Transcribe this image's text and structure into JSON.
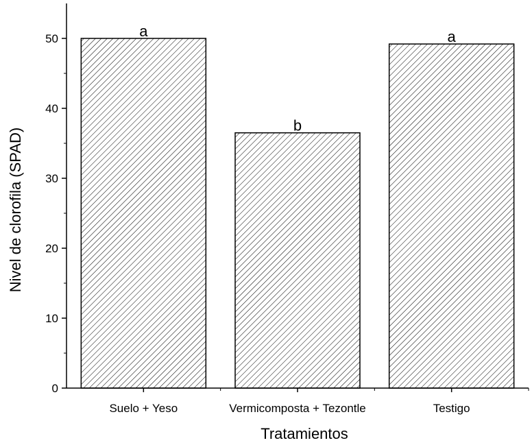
{
  "chart_data": {
    "type": "bar",
    "categories": [
      "Suelo + Yeso",
      "Vermicomposta + Tezontle",
      "Testigo"
    ],
    "values": [
      50.0,
      36.5,
      49.2
    ],
    "annotations": [
      "a",
      "b",
      "a"
    ],
    "title": "",
    "xlabel": "Tratamientos",
    "ylabel": "Nivel de clorofila (SPAD)",
    "ylim": [
      0,
      55
    ],
    "yticks": [
      0,
      10,
      20,
      30,
      40,
      50
    ],
    "grid": false,
    "bar_fill": "hatched",
    "colors": {
      "bar_hatch": "#000000",
      "bar_background": "#ffffff",
      "axis": "#000000"
    }
  }
}
